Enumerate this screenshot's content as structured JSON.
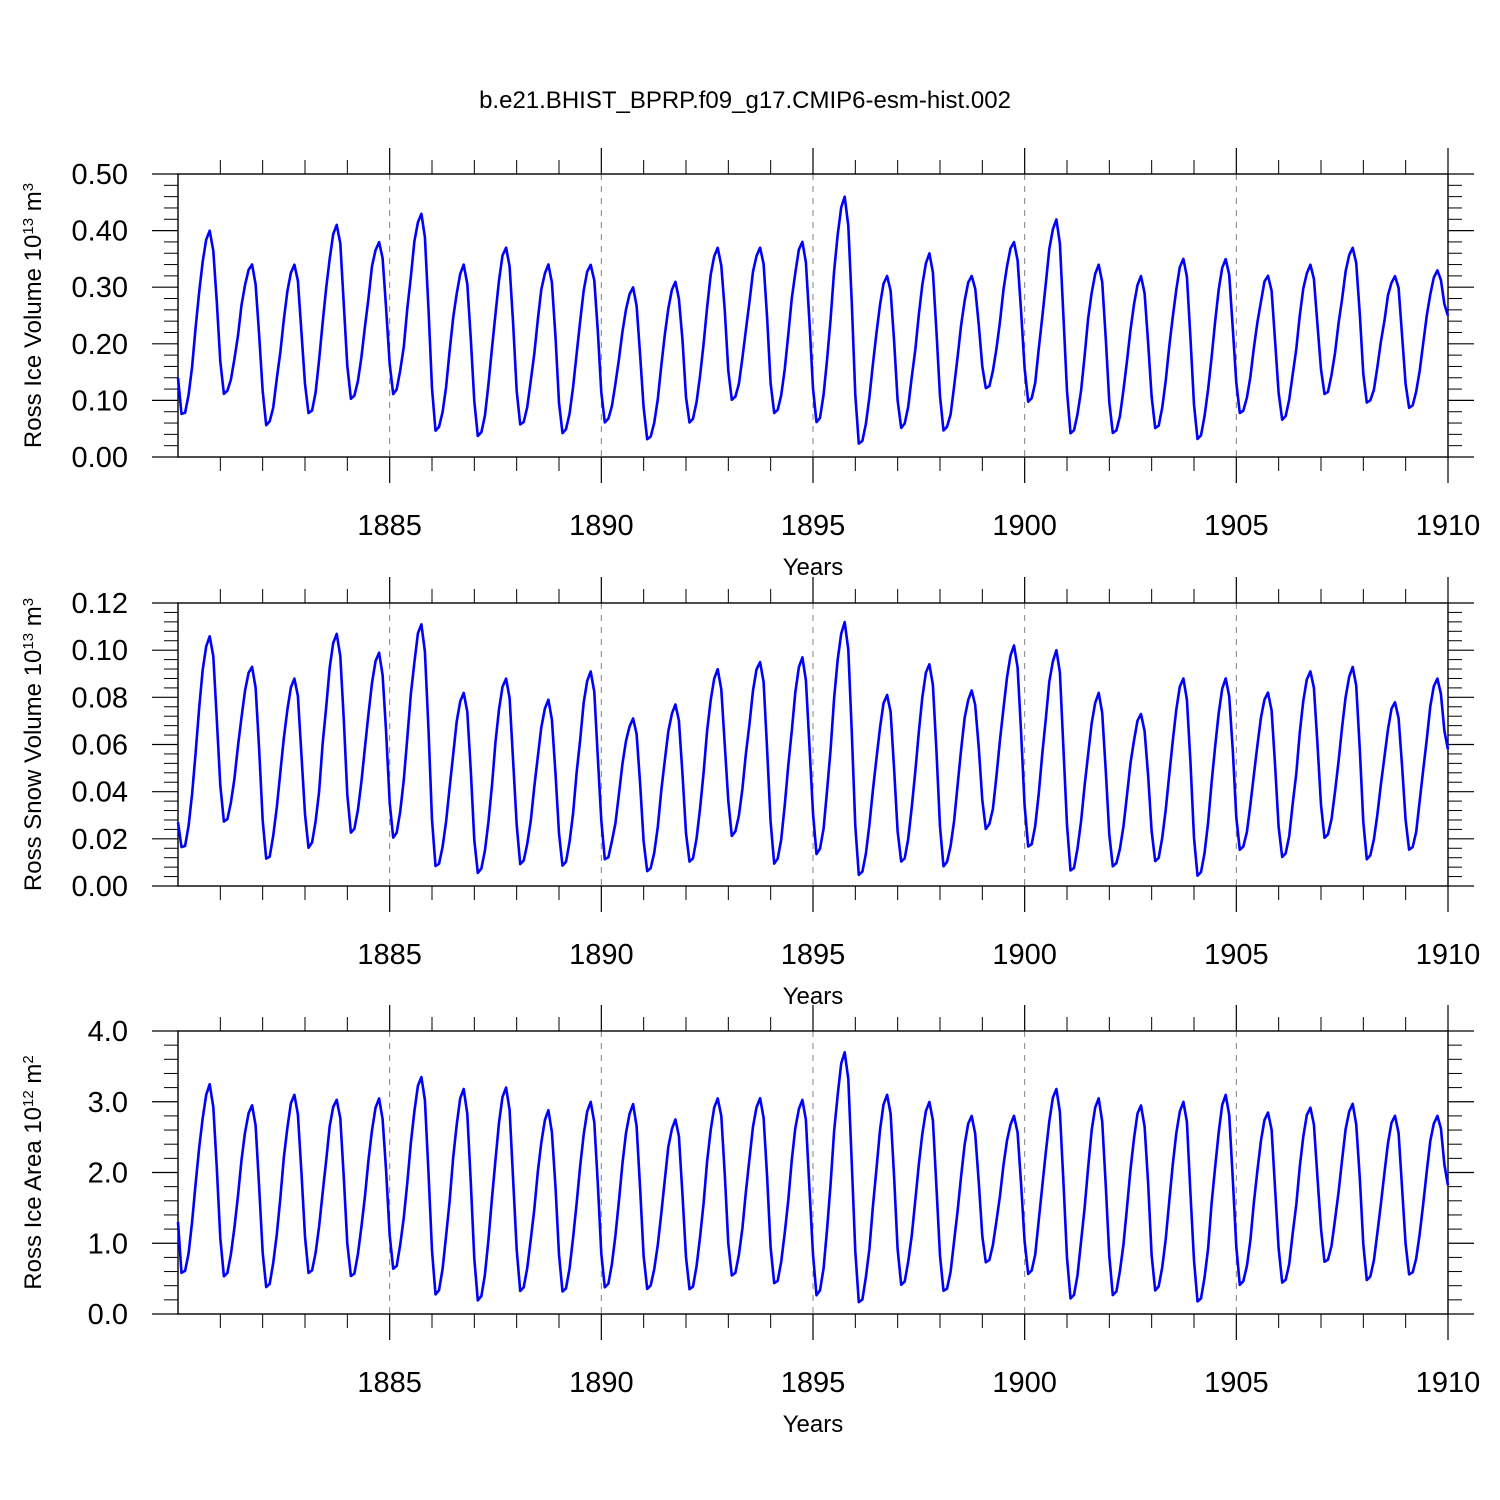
{
  "figure_title": "b.e21.BHIST_BPRP.f09_g17.CMIP6-esm-hist.002",
  "colors": {
    "line": "#0000ff",
    "axis": "#000000",
    "grid": "#808080"
  },
  "chart_data": [
    {
      "type": "line",
      "name": "ross-ice-volume",
      "ylabel": {
        "prefix": "Ross Ice Volume 10",
        "exp": "13",
        "unit": " m",
        "unit_exp": "3"
      },
      "xlabel": "Years",
      "ylim": [
        0.0,
        0.5
      ],
      "ytick_values": [
        0.0,
        0.1,
        0.2,
        0.3,
        0.4,
        0.5
      ],
      "ytick_labels": [
        "0.00",
        "0.10",
        "0.20",
        "0.30",
        "0.40",
        "0.50"
      ],
      "xlim": [
        1880.0,
        1910.0
      ],
      "xtick_values": [
        1885,
        1890,
        1895,
        1900,
        1905,
        1910
      ],
      "xtick_labels": [
        "1885",
        "1890",
        "1895",
        "1900",
        "1905",
        "1910"
      ],
      "grid_x": [
        1885,
        1890,
        1895,
        1900,
        1905
      ],
      "series": [
        {
          "name": "Ross Ice Volume",
          "start": 1880.0,
          "step": 0.08333,
          "peaks": [
            0.4,
            0.34,
            0.34,
            0.41,
            0.38,
            0.43,
            0.34,
            0.37,
            0.34,
            0.34,
            0.3,
            0.31,
            0.37,
            0.37,
            0.38,
            0.46,
            0.32,
            0.36,
            0.32,
            0.38,
            0.42,
            0.34,
            0.32,
            0.35,
            0.35,
            0.32,
            0.34,
            0.37,
            0.32,
            0.33
          ],
          "troughs": [
            0.07,
            0.11,
            0.055,
            0.075,
            0.1,
            0.11,
            0.045,
            0.035,
            0.055,
            0.04,
            0.06,
            0.03,
            0.06,
            0.1,
            0.075,
            0.06,
            0.02,
            0.05,
            0.045,
            0.12,
            0.095,
            0.04,
            0.04,
            0.05,
            0.03,
            0.075,
            0.065,
            0.11,
            0.095,
            0.085,
            0.25
          ],
          "start_value": 0.14
        }
      ]
    },
    {
      "type": "line",
      "name": "ross-snow-volume",
      "ylabel": {
        "prefix": "Ross Snow Volume 10",
        "exp": "13",
        "unit": " m",
        "unit_exp": "3"
      },
      "xlabel": "Years",
      "ylim": [
        0.0,
        0.12
      ],
      "ytick_values": [
        0.0,
        0.02,
        0.04,
        0.06,
        0.08,
        0.1,
        0.12
      ],
      "ytick_labels": [
        "0.00",
        "0.02",
        "0.04",
        "0.06",
        "0.08",
        "0.10",
        "0.12"
      ],
      "xlim": [
        1880.0,
        1910.0
      ],
      "xtick_values": [
        1885,
        1890,
        1895,
        1900,
        1905,
        1910
      ],
      "xtick_labels": [
        "1885",
        "1890",
        "1895",
        "1900",
        "1905",
        "1910"
      ],
      "grid_x": [
        1885,
        1890,
        1895,
        1900,
        1905
      ],
      "series": [
        {
          "name": "Ross Snow Volume",
          "start": 1880.0,
          "step": 0.08333,
          "peaks": [
            0.106,
            0.093,
            0.088,
            0.107,
            0.099,
            0.111,
            0.082,
            0.088,
            0.079,
            0.091,
            0.071,
            0.077,
            0.092,
            0.095,
            0.097,
            0.112,
            0.081,
            0.094,
            0.083,
            0.102,
            0.1,
            0.082,
            0.073,
            0.088,
            0.088,
            0.082,
            0.091,
            0.093,
            0.078,
            0.088
          ],
          "troughs": [
            0.015,
            0.027,
            0.011,
            0.016,
            0.022,
            0.02,
            0.008,
            0.005,
            0.009,
            0.008,
            0.011,
            0.006,
            0.01,
            0.021,
            0.009,
            0.013,
            0.004,
            0.01,
            0.008,
            0.024,
            0.016,
            0.006,
            0.008,
            0.01,
            0.004,
            0.015,
            0.012,
            0.02,
            0.011,
            0.015,
            0.058
          ],
          "start_value": 0.027
        }
      ]
    },
    {
      "type": "line",
      "name": "ross-ice-area",
      "ylabel": {
        "prefix": "Ross Ice Area 10",
        "exp": "12",
        "unit": " m",
        "unit_exp": "2"
      },
      "xlabel": "Years",
      "ylim": [
        0.0,
        4.0
      ],
      "ytick_values": [
        0.0,
        1.0,
        2.0,
        3.0,
        4.0
      ],
      "ytick_labels": [
        "0.0",
        "1.0",
        "2.0",
        "3.0",
        "4.0"
      ],
      "xlim": [
        1880.0,
        1910.0
      ],
      "xtick_values": [
        1885,
        1890,
        1895,
        1900,
        1905,
        1910
      ],
      "xtick_labels": [
        "1885",
        "1890",
        "1895",
        "1900",
        "1905",
        "1910"
      ],
      "grid_x": [
        1885,
        1890,
        1895,
        1900,
        1905
      ],
      "series": [
        {
          "name": "Ross Ice Area",
          "start": 1880.0,
          "step": 0.08333,
          "peaks": [
            3.25,
            2.95,
            3.1,
            3.03,
            3.05,
            3.35,
            3.18,
            3.2,
            2.88,
            3.0,
            2.97,
            2.75,
            3.05,
            3.05,
            3.03,
            3.7,
            3.1,
            3.0,
            2.8,
            2.8,
            3.18,
            3.05,
            2.95,
            3.0,
            3.1,
            2.85,
            2.92,
            2.97,
            2.8,
            2.8
          ],
          "troughs": [
            0.55,
            0.52,
            0.36,
            0.57,
            0.52,
            0.62,
            0.26,
            0.18,
            0.3,
            0.3,
            0.36,
            0.33,
            0.33,
            0.52,
            0.42,
            0.25,
            0.14,
            0.4,
            0.31,
            0.72,
            0.55,
            0.2,
            0.25,
            0.32,
            0.15,
            0.4,
            0.43,
            0.72,
            0.46,
            0.54,
            1.82
          ],
          "start_value": 1.3
        }
      ]
    }
  ]
}
